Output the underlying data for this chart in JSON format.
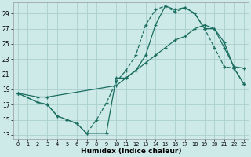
{
  "xlabel": "Humidex (Indice chaleur)",
  "background_color": "#cde9e8",
  "grid_color": "#aacfce",
  "line_color": "#1a6e60",
  "xlim": [
    -0.5,
    23.5
  ],
  "ylim": [
    12.5,
    30.5
  ],
  "xticks": [
    0,
    1,
    2,
    3,
    4,
    5,
    6,
    7,
    8,
    9,
    10,
    11,
    12,
    13,
    14,
    15,
    16,
    17,
    18,
    19,
    20,
    21,
    22,
    23
  ],
  "yticks": [
    13,
    15,
    17,
    19,
    21,
    23,
    25,
    27,
    29
  ],
  "line1_x": [
    0,
    2,
    3,
    4,
    5,
    6,
    7,
    9,
    10,
    11,
    12,
    13,
    14,
    15,
    16,
    17,
    18,
    19,
    20,
    21,
    22,
    23
  ],
  "line1_y": [
    18.5,
    17.3,
    17.0,
    15.5,
    15.0,
    14.5,
    13.2,
    13.2,
    20.5,
    20.5,
    21.5,
    23.5,
    27.5,
    30.0,
    29.5,
    29.8,
    29.0,
    27.0,
    27.0,
    24.5,
    22.0,
    21.8
  ],
  "line2_x": [
    0,
    2,
    3,
    10,
    11,
    12,
    13,
    14,
    15,
    16,
    17,
    18,
    19,
    20,
    21,
    22,
    23
  ],
  "line2_y": [
    18.5,
    18.0,
    18.0,
    19.5,
    20.5,
    21.5,
    22.5,
    23.5,
    24.5,
    25.5,
    26.0,
    27.0,
    27.5,
    27.0,
    25.2,
    21.8,
    19.7
  ],
  "line3_x": [
    0,
    2,
    3,
    4,
    5,
    6,
    7,
    8,
    9,
    10,
    11,
    12,
    13,
    14,
    15,
    16,
    17,
    18,
    19,
    20,
    21,
    22,
    23
  ],
  "line3_y": [
    18.5,
    17.3,
    17.0,
    15.5,
    15.0,
    14.5,
    13.2,
    15.0,
    17.2,
    20.0,
    21.5,
    23.5,
    27.5,
    29.5,
    30.0,
    29.2,
    29.8,
    29.0,
    27.0,
    24.5,
    22.0,
    21.8,
    19.7
  ]
}
